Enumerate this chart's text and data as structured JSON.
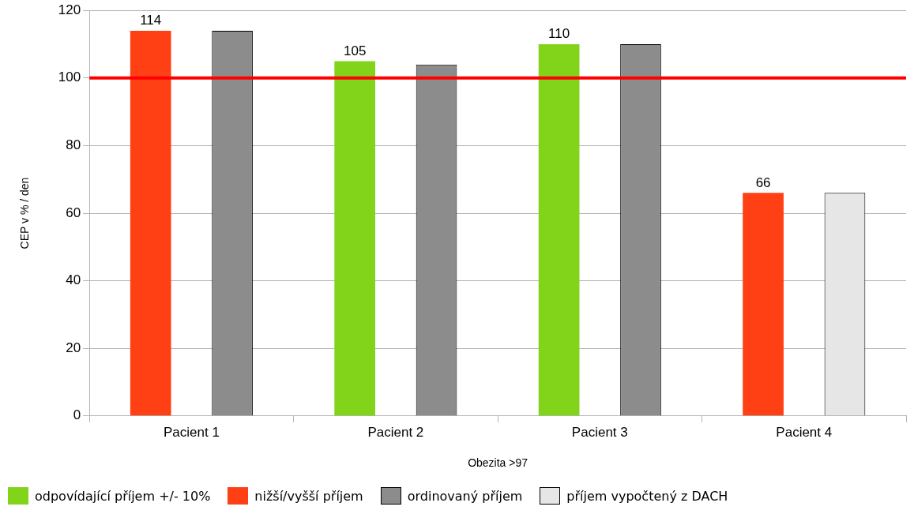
{
  "chart_data": {
    "type": "bar",
    "xlabel": "Obezita >97",
    "ylabel": "CEP v % / den",
    "categories": [
      "Pacient 1",
      "Pacient 2",
      "Pacient 3",
      "Pacient 4"
    ],
    "series": [
      {
        "name": "odpovídající příjem +/- 10%",
        "color": "#81d41a",
        "values": [
          null,
          105,
          110,
          null
        ],
        "value_labels": [
          null,
          "105",
          "110",
          null
        ]
      },
      {
        "name": "nižší/vyšší příjem",
        "color": "#ff4015",
        "values": [
          114,
          null,
          null,
          66
        ],
        "value_labels": [
          "114",
          null,
          null,
          "66"
        ]
      },
      {
        "name": "ordinovaný příjem",
        "color": "#8c8c8c",
        "values": [
          114,
          104,
          110,
          null
        ]
      },
      {
        "name": "příjem vypočtený z DACH",
        "color": "#e6e6e6",
        "values": [
          null,
          null,
          null,
          66
        ]
      }
    ],
    "ylim": [
      0,
      120
    ],
    "yticks": [
      0,
      20,
      40,
      60,
      80,
      100,
      120
    ],
    "grid": "y",
    "legend": "bottom",
    "ref_lines": [
      {
        "axis": "y",
        "value": 100,
        "color": "#ff0000"
      }
    ]
  }
}
